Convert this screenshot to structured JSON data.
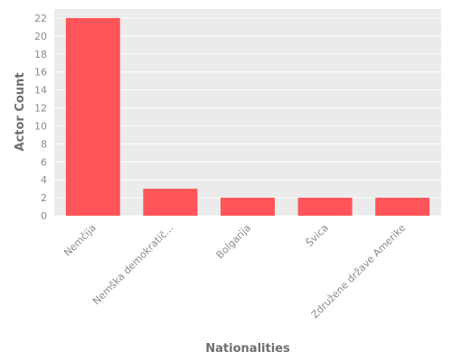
{
  "chart_data": {
    "type": "bar",
    "categories": [
      "Nemčija",
      "Nemška demokratič...",
      "Bolgarija",
      "Švica",
      "Združene države Amerike"
    ],
    "values": [
      22,
      3,
      2,
      2,
      2
    ],
    "xlabel": "Nationalities",
    "ylabel": "Actor Count",
    "yticks": [
      0,
      2,
      4,
      6,
      8,
      10,
      12,
      14,
      16,
      18,
      20,
      22
    ],
    "ylim": [
      0,
      23
    ],
    "grid": true,
    "bar_color": "#ff5459",
    "panel_background": "#ebebeb",
    "grid_color": "#ffffff"
  }
}
